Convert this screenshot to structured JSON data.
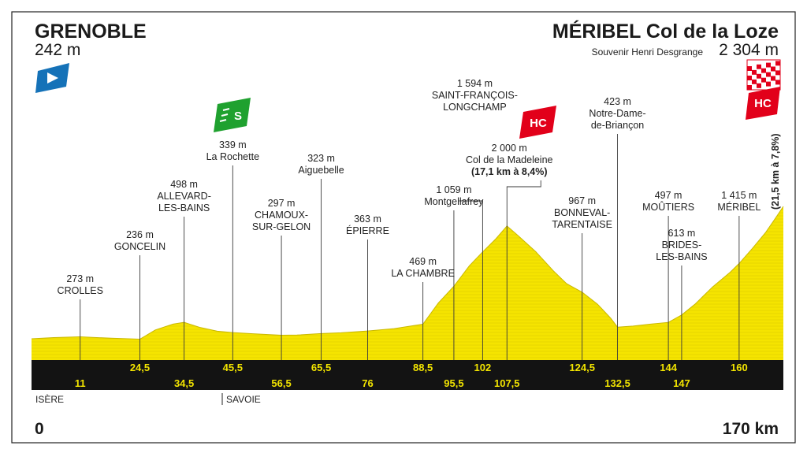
{
  "start": {
    "name": "GRENOBLE",
    "altitude": "242 m"
  },
  "finish": {
    "name": "MÉRIBEL Col de la Loze",
    "souvenir": "Souvenir Henri Desgrange",
    "altitude": "2 304 m"
  },
  "final_climb_note": "(21,5 km à 7,8%)",
  "regions": [
    "ISÈRE",
    "SAVOIE"
  ],
  "axis": {
    "start_label": "0",
    "end_label": "170 km"
  },
  "badges": {
    "sprint": "S",
    "hc": "HC"
  },
  "colors": {
    "profile_fill": "#f5e400",
    "band": "#131313",
    "km_text": "#f2e400",
    "hc_red": "#e2001a",
    "sprint_green": "#1fa12f",
    "start_blue": "#1572b8"
  },
  "chart_data": {
    "type": "area",
    "xlabel": "",
    "ylabel": "",
    "xlim": [
      0,
      170
    ],
    "ylim": [
      0,
      2400
    ],
    "x": [
      0,
      5,
      11,
      18,
      24.5,
      28,
      32,
      34.5,
      38,
      42,
      45.5,
      50,
      56.5,
      60,
      65.5,
      70,
      76,
      82,
      88.5,
      92,
      95.5,
      99,
      102,
      105,
      107.5,
      110,
      114,
      118,
      121,
      124.5,
      128,
      131,
      132.5,
      136,
      140,
      144,
      147,
      150,
      154,
      158,
      160,
      163,
      166,
      168,
      170
    ],
    "y": [
      242,
      260,
      273,
      250,
      236,
      380,
      470,
      498,
      420,
      360,
      339,
      320,
      297,
      300,
      323,
      335,
      363,
      400,
      469,
      800,
      1059,
      1380,
      1594,
      1800,
      2000,
      1850,
      1600,
      1300,
      1100,
      967,
      780,
      560,
      423,
      440,
      470,
      497,
      613,
      780,
      1050,
      1280,
      1415,
      1650,
      1900,
      2100,
      2304
    ],
    "waypoints": [
      {
        "km": "11",
        "x": 11,
        "name": "CROLLES",
        "altitude": "273 m"
      },
      {
        "km": "24,5",
        "x": 24.5,
        "name": "GONCELIN",
        "altitude": "236 m"
      },
      {
        "km": "34,5",
        "x": 34.5,
        "name": "ALLEVARD-\nLES-BAINS",
        "altitude": "498 m"
      },
      {
        "km": "45,5",
        "x": 45.5,
        "name": "La Rochette",
        "altitude": "339 m"
      },
      {
        "km": "56,5",
        "x": 56.5,
        "name": "CHAMOUX-\nSUR-GELON",
        "altitude": "297 m"
      },
      {
        "km": "65,5",
        "x": 65.5,
        "name": "Aiguebelle",
        "altitude": "323 m"
      },
      {
        "km": "76",
        "x": 76,
        "name": "ÉPIERRE",
        "altitude": "363 m"
      },
      {
        "km": "88,5",
        "x": 88.5,
        "name": "LA CHAMBRE",
        "altitude": "469 m"
      },
      {
        "km": "95,5",
        "x": 95.5,
        "name": "Montgellafrey",
        "altitude": "1 059 m"
      },
      {
        "km": "102",
        "x": 102,
        "name": "SAINT-FRANÇOIS-\nLONGCHAMP",
        "altitude": "1 594 m"
      },
      {
        "km": "107,5",
        "x": 107.5,
        "name": "Col de la Madeleine",
        "altitude": "2 000 m",
        "detail": "(17,1 km à 8,4%)"
      },
      {
        "km": "124,5",
        "x": 124.5,
        "name": "BONNEVAL-\nTARENTAISE",
        "altitude": "967 m"
      },
      {
        "km": "132,5",
        "x": 132.5,
        "name": "Notre-Dame-\nde-Briançon",
        "altitude": "423 m"
      },
      {
        "km": "144",
        "x": 144,
        "name": "MOÛTIERS",
        "altitude": "497 m"
      },
      {
        "km": "147",
        "x": 147,
        "name": "BRIDES-\nLES-BAINS",
        "altitude": "613 m"
      },
      {
        "km": "160",
        "x": 160,
        "name": "MÉRIBEL",
        "altitude": "1 415 m"
      }
    ]
  }
}
